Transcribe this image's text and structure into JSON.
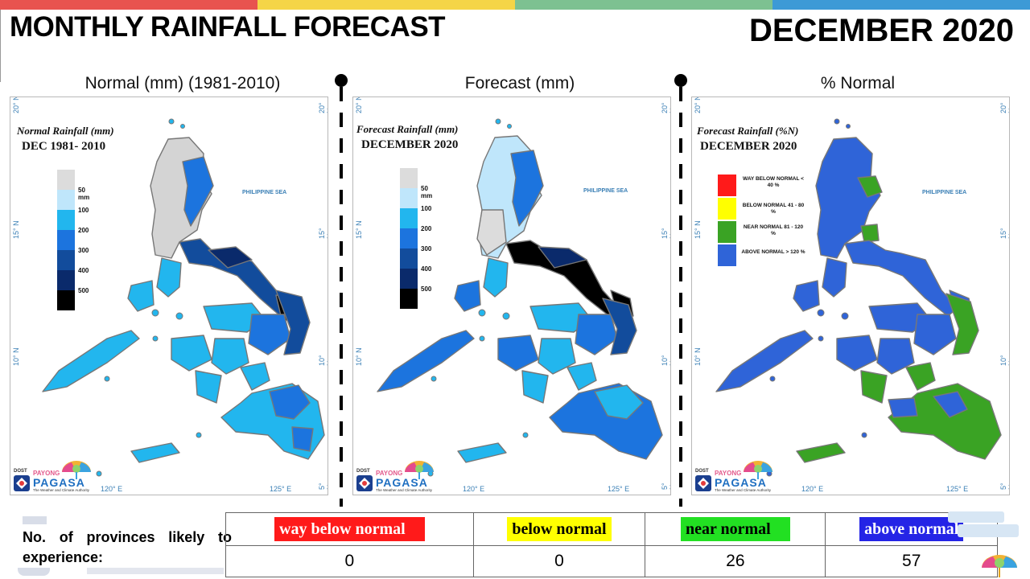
{
  "header": {
    "title": "MONTHLY RAINFALL FORECAST",
    "date": "DECEMBER 2020",
    "bar_colors": [
      "#e8534f",
      "#f5d547",
      "#7dc191",
      "#3d9ad6"
    ]
  },
  "panels": [
    {
      "heading": "Normal (mm) (1981-2010)",
      "map_title": "Normal Rainfall (mm)",
      "map_subtitle": "DEC 1981- 2010",
      "sea_label": "PHILIPPINE SEA",
      "scale_labels": [
        "50 mm",
        "100",
        "200",
        "300",
        "400",
        "500"
      ]
    },
    {
      "heading": "Forecast (mm)",
      "map_title": "Forecast Rainfall (mm)",
      "map_subtitle": "DECEMBER 2020",
      "sea_label": "PHILIPPINE SEA",
      "scale_labels": [
        "50 mm",
        "100",
        "200",
        "300",
        "400",
        "500"
      ]
    },
    {
      "heading": "% Normal",
      "map_title": "Forecast Rainfall (%N)",
      "map_subtitle": "DECEMBER 2020",
      "sea_label": "PHILIPPINE SEA",
      "legend": [
        {
          "label": "WAY BELOW NORMAL < 40 %",
          "color": "#ff1a1a"
        },
        {
          "label": "BELOW NORMAL 41 - 80 %",
          "color": "#ffff00"
        },
        {
          "label": "NEAR NORMAL 81 - 120 %",
          "color": "#3aa324"
        },
        {
          "label": "ABOVE NORMAL > 120 %",
          "color": "#2f64d8"
        }
      ]
    }
  ],
  "map_axes": {
    "lat_labels": [
      "20° N",
      "15° N",
      "10° N",
      "5° N"
    ],
    "lon_labels": [
      "120° E",
      "125° E"
    ]
  },
  "logo": {
    "dost": "DOST",
    "payong": "PAYONG",
    "pagasa": "PAGASA",
    "tagline": "The Weather and Climate Authority"
  },
  "scale_colors": [
    "#dcdcdc",
    "#bfe6fb",
    "#22b6ee",
    "#1c74de",
    "#124c9c",
    "#0a2a6b",
    "#000000"
  ],
  "summary": {
    "label": "No. of provinces likely  to experience:",
    "categories": [
      {
        "name": "way below normal",
        "bg": "#ff1a1a",
        "fg": "#ffffff",
        "count": "0"
      },
      {
        "name": "below normal",
        "bg": "#ffff00",
        "fg": "#000000",
        "count": "0"
      },
      {
        "name": "near normal",
        "bg": "#22e022",
        "fg": "#000000",
        "count": "26"
      },
      {
        "name": "above normal",
        "bg": "#2424e6",
        "fg": "#ffffff",
        "count": "57"
      }
    ]
  }
}
